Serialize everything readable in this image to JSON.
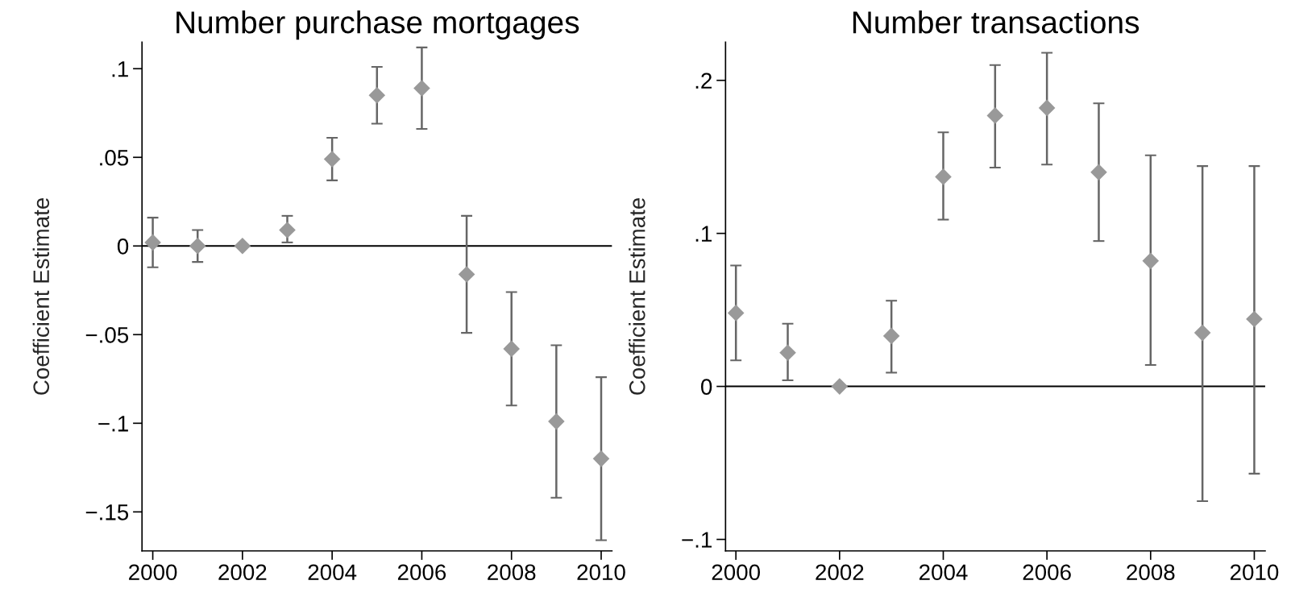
{
  "chart_data": [
    {
      "type": "scatter",
      "title": "Number purchase mortgages",
      "ylabel": "Coefficient Estimate",
      "x": [
        2000,
        2001,
        2002,
        2003,
        2004,
        2005,
        2006,
        2007,
        2008,
        2009,
        2010
      ],
      "series": [
        {
          "color": "#999999",
          "values": [
            0.002,
            0,
            0,
            0.009,
            0.049,
            0.085,
            0.089,
            -0.016,
            -0.058,
            -0.099,
            -0.12
          ],
          "errors": [
            [
              -0.012,
              0.016
            ],
            [
              -0.009,
              0.009
            ],
            null,
            [
              0.002,
              0.017
            ],
            [
              0.037,
              0.061
            ],
            [
              0.069,
              0.101
            ],
            [
              0.066,
              0.112
            ],
            [
              -0.049,
              0.017
            ],
            [
              -0.09,
              -0.026
            ],
            [
              -0.142,
              -0.056
            ],
            [
              -0.166,
              -0.074
            ]
          ]
        }
      ],
      "xlim": [
        1999.76,
        2010.24
      ],
      "xticks": [
        2000,
        2002,
        2004,
        2006,
        2008,
        2010
      ],
      "ylim": [
        -0.172,
        0.115
      ],
      "yticks": [
        {
          "value": -0.15,
          "label": "−.15"
        },
        {
          "value": -0.1,
          "label": "−.1"
        },
        {
          "value": -0.05,
          "label": "−.05"
        },
        0,
        {
          "value": 0.05,
          "label": ".05"
        },
        {
          "value": 0.1,
          "label": ".1"
        }
      ],
      "ref_lines": [
        {
          "axis": "y",
          "value": 0,
          "color": "#000000"
        }
      ],
      "marker": "diamond",
      "grid": false
    },
    {
      "type": "scatter",
      "title": "Number transactions",
      "ylabel": "Coefficient Estimate",
      "x": [
        2000,
        2001,
        2002,
        2003,
        2004,
        2005,
        2006,
        2007,
        2008,
        2009,
        2010
      ],
      "series": [
        {
          "color": "#999999",
          "values": [
            0.048,
            0.022,
            0,
            0.033,
            0.137,
            0.177,
            0.182,
            0.14,
            0.082,
            0.035,
            0.044
          ],
          "errors": [
            [
              0.017,
              0.079
            ],
            [
              0.004,
              0.041
            ],
            null,
            [
              0.009,
              0.056
            ],
            [
              0.109,
              0.166
            ],
            [
              0.143,
              0.21
            ],
            [
              0.145,
              0.218
            ],
            [
              0.095,
              0.185
            ],
            [
              0.014,
              0.151
            ],
            [
              -0.075,
              0.144
            ],
            [
              -0.057,
              0.144
            ]
          ]
        }
      ],
      "xlim": [
        1999.8,
        2010.21
      ],
      "xticks": [
        2000,
        2002,
        2004,
        2006,
        2008,
        2010
      ],
      "ylim": [
        -0.1075,
        0.225
      ],
      "yticks": [
        {
          "value": -0.1,
          "label": "−.1"
        },
        0,
        {
          "value": 0.1,
          "label": ".1"
        },
        {
          "value": 0.2,
          "label": ".2"
        }
      ],
      "ref_lines": [
        {
          "axis": "y",
          "value": 0,
          "color": "#000000"
        }
      ],
      "marker": "diamond",
      "grid": false
    }
  ]
}
